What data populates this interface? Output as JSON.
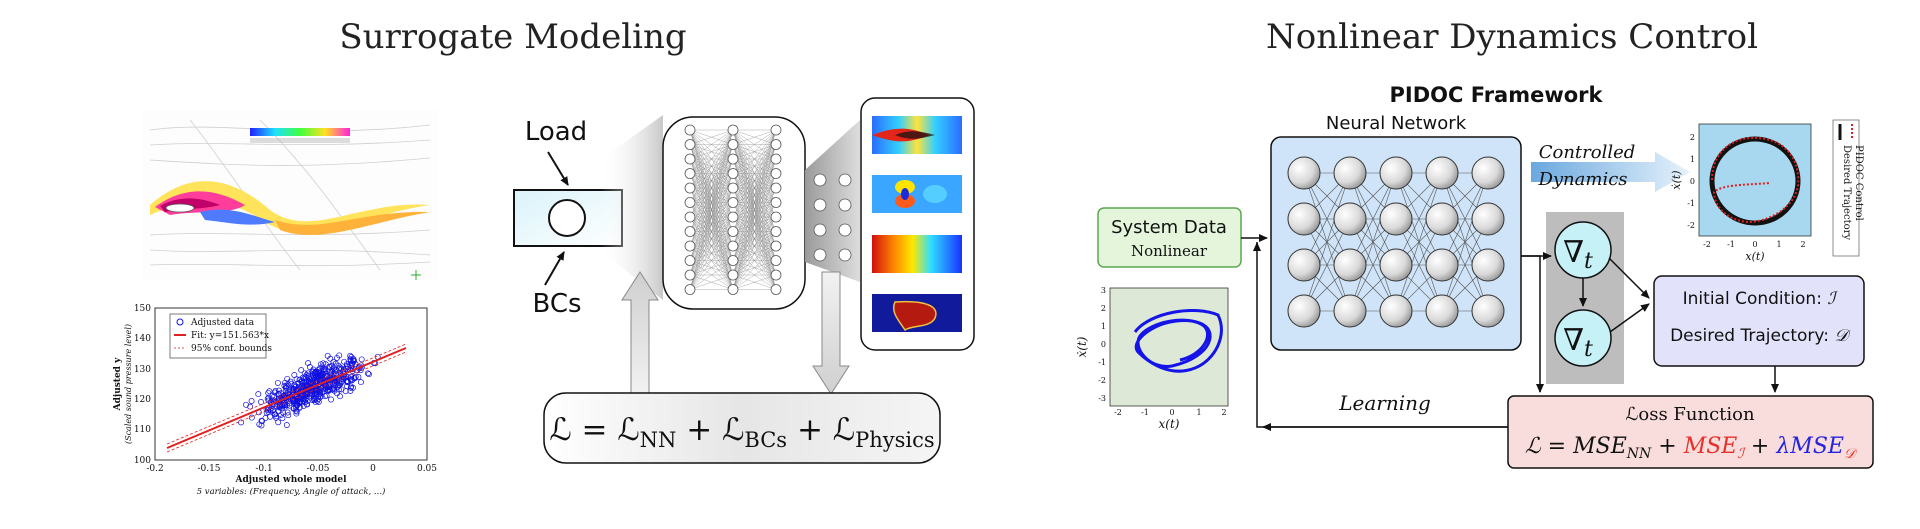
{
  "left_panel": {
    "title": "Surrogate Modeling",
    "load_label": "Load",
    "bcs_label": "BCs",
    "loss_equation": {
      "lhs": "ℒ",
      "eq": " = ",
      "t1": "ℒ",
      "t1_sub": "NN",
      "plus1": " + ",
      "t2": "ℒ",
      "t2_sub": "BCs",
      "plus2": " + ",
      "t3": "ℒ",
      "t3_sub": "Physics"
    },
    "regression_plot": {
      "ylabel": "Adjusted y",
      "ylabel_sub": "(Scaled sound pressure level)",
      "xlabel": "Adjusted whole model",
      "caption": "5 variables: (Frequency, Angle of attack, ...)",
      "legend": [
        "Adjusted data",
        "Fit: y=151.563*x",
        "95% conf. bounds"
      ],
      "xticks": [
        "-0.2",
        "-0.15",
        "-0.1",
        "-0.05",
        "0",
        "0.05"
      ],
      "yticks": [
        "100",
        "110",
        "120",
        "130",
        "140",
        "150"
      ]
    },
    "colors": {
      "scatter": "#1010e0",
      "fit": "#e02020",
      "box_fill": "#bfe8f5"
    }
  },
  "right_panel": {
    "title": "Nonlinear Dynamics Control",
    "framework_title": "PIDOC Framework",
    "nn_label": "Neural Network",
    "system_data_title": "System Data",
    "system_data_sub": "Nonlinear",
    "controlled_line1": "Controlled",
    "controlled_line2": "Dynamics",
    "learning_label": "Learning",
    "nabla_1": "∇",
    "nabla_1_sub": "t",
    "nabla_2": "∇",
    "nabla_2_sub": "t",
    "conditions_line1": "Initial Condition: ",
    "conditions_line1_sym": "ℐ",
    "conditions_line2": "Desired Trajectory: ",
    "conditions_line2_sym": "𝒟",
    "loss_title": "ℒoss Function",
    "loss_eq": {
      "p1": "ℒ = ",
      "p2": "MSE",
      "p2_sub": "NN",
      "p3": " + ",
      "p4": "MSE",
      "p4_sub": "ℐ",
      "p5": " + ",
      "p6": "λMSE",
      "p6_sub": "𝒟"
    },
    "phase_plot_small": {
      "ylabel": "ẋ(t)",
      "xlabel": "x(t)",
      "xticks": [
        "-2",
        "-1",
        "0",
        "1",
        "2"
      ],
      "yticks": [
        "3",
        "2",
        "1",
        "0",
        "-1",
        "-2",
        "-3"
      ]
    },
    "phase_plot_result": {
      "ylabel": "ẋ(t)",
      "xlabel": "x(t)",
      "xticks": [
        "-2",
        "-1",
        "0",
        "1",
        "2"
      ],
      "yticks": [
        "2",
        "1",
        "0",
        "-1",
        "-2"
      ],
      "legend": [
        "Desired Trajectory",
        "PIDOC Control"
      ]
    },
    "colors": {
      "system_fill": "#e4f5dc",
      "nn_fill": "#cfe4f8",
      "cond_fill": "#e2e2fb",
      "loss_fill": "#f9dcdc",
      "nabla_fill": "#c6f1f7",
      "red": "#e8302a",
      "blue": "#2323e0"
    }
  }
}
